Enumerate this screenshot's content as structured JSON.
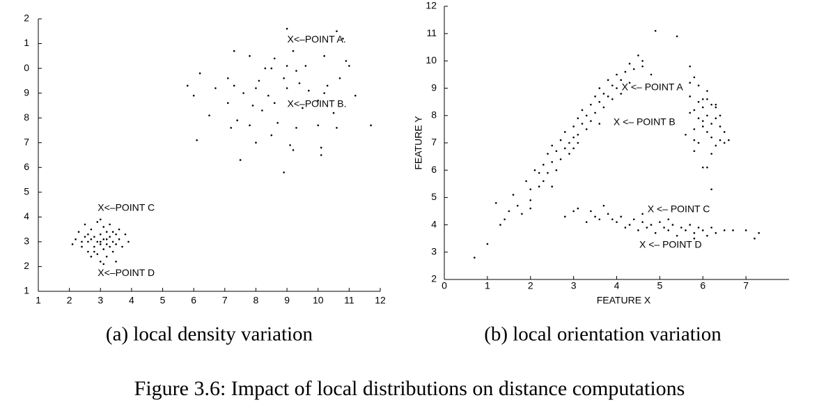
{
  "chart_data": [
    {
      "type": "scatter",
      "caption": "(a) local density variation",
      "color": "#000000",
      "xlim": [
        1,
        12
      ],
      "xticks": [
        1,
        2,
        3,
        4,
        5,
        6,
        7,
        8,
        9,
        10,
        11,
        12
      ],
      "ylim": [
        1,
        12
      ],
      "yticks": [
        1,
        2,
        3,
        4,
        5,
        6,
        7,
        8,
        9,
        {
          "value": 10,
          "label": "0"
        },
        {
          "value": 11,
          "label": "1"
        },
        {
          "value": 12,
          "label": "2"
        }
      ],
      "annotations": [
        {
          "text": "X<–POINT A.",
          "x": 9.1,
          "y": 11.15
        },
        {
          "text": "X<–POINT B.",
          "x": 9.1,
          "y": 8.55
        },
        {
          "text": "X<–POINT C",
          "x": 3.0,
          "y": 4.35
        },
        {
          "text": "X<–POINT D",
          "x": 3.0,
          "y": 1.73
        }
      ],
      "x": [
        9.0,
        10.6,
        10.8,
        9.2,
        7.3,
        7.8,
        8.6,
        10.2,
        10.9,
        11.0,
        6.2,
        7.1,
        8.3,
        8.5,
        9.0,
        9.3,
        9.6,
        8.1,
        8.9,
        9.4,
        10.3,
        10.7,
        5.8,
        6.0,
        6.7,
        7.3,
        7.6,
        8.0,
        8.4,
        9.0,
        9.7,
        10.2,
        11.2,
        7.1,
        7.9,
        8.2,
        8.6,
        9.5,
        10.0,
        10.5,
        6.5,
        7.4,
        7.8,
        8.7,
        9.3,
        10.0,
        10.6,
        11.7,
        6.1,
        8.0,
        8.5,
        9.2,
        10.1,
        7.5,
        8.9,
        10.1,
        9.1,
        7.2,
        2.2,
        2.3,
        2.4,
        2.5,
        2.5,
        2.6,
        2.6,
        2.7,
        2.7,
        2.8,
        2.8,
        2.9,
        2.9,
        2.9,
        3.0,
        3.0,
        3.0,
        3.1,
        3.1,
        3.1,
        3.2,
        3.2,
        3.2,
        3.3,
        3.3,
        3.3,
        3.4,
        3.4,
        3.5,
        3.5,
        3.6,
        3.6,
        3.7,
        3.8,
        3.9,
        2.4,
        2.7,
        3.0,
        2.8,
        3.2,
        3.4,
        2.6,
        3.1,
        2.1,
        3.5,
        3.0
      ],
      "values": [
        11.6,
        11.5,
        11.2,
        10.7,
        10.7,
        10.5,
        10.4,
        10.5,
        10.3,
        10.1,
        9.8,
        9.6,
        10.0,
        10.0,
        10.1,
        9.9,
        10.1,
        9.5,
        9.6,
        9.4,
        9.3,
        9.6,
        9.3,
        8.9,
        9.2,
        9.3,
        9.0,
        9.2,
        8.9,
        9.2,
        9.1,
        9.0,
        8.9,
        8.6,
        8.5,
        8.3,
        8.6,
        8.4,
        8.7,
        8.2,
        8.1,
        7.9,
        7.7,
        7.8,
        7.6,
        7.7,
        7.6,
        7.7,
        7.1,
        7.0,
        7.3,
        6.7,
        6.8,
        6.3,
        5.8,
        6.5,
        6.9,
        7.6,
        3.1,
        3.4,
        2.8,
        3.7,
        3.2,
        2.6,
        3.0,
        3.5,
        2.4,
        3.2,
        2.8,
        3.8,
        3.0,
        2.5,
        3.3,
        2.9,
        2.2,
        3.6,
        3.1,
        2.7,
        3.4,
        2.9,
        2.4,
        3.2,
        2.8,
        3.7,
        3.0,
        2.6,
        3.3,
        2.9,
        3.5,
        3.1,
        2.8,
        3.3,
        3.0,
        3.0,
        3.1,
        3.0,
        2.6,
        3.1,
        3.4,
        3.3,
        2.1,
        2.9,
        2.2,
        3.9
      ]
    },
    {
      "type": "scatter",
      "caption": "(b) local orientation variation",
      "color": "#000000",
      "x_label": "FEATURE X",
      "y_label": "FEATURE Y",
      "xlim": [
        0,
        8
      ],
      "xticks": [
        0,
        1,
        2,
        3,
        4,
        5,
        6,
        7
      ],
      "ylim": [
        2,
        12
      ],
      "yticks": [
        2,
        3,
        4,
        5,
        6,
        7,
        8,
        9,
        10,
        11,
        12
      ],
      "annotations": [
        {
          "text": "X <– POINT A",
          "x": 4.18,
          "y": 9.02
        },
        {
          "text": "X <– POINT B",
          "x": 3.99,
          "y": 7.74
        },
        {
          "text": "X <– POINT C",
          "x": 4.78,
          "y": 4.55
        },
        {
          "text": "X <– POINT D",
          "x": 4.59,
          "y": 3.25
        }
      ],
      "x": [
        0.7,
        1.0,
        1.2,
        1.3,
        1.5,
        1.6,
        1.7,
        1.8,
        1.9,
        2.0,
        2.0,
        2.1,
        2.2,
        2.2,
        2.3,
        2.3,
        2.4,
        2.4,
        2.5,
        2.5,
        2.6,
        2.6,
        2.7,
        2.7,
        2.8,
        2.8,
        2.9,
        2.9,
        3.0,
        3.0,
        3.0,
        3.1,
        3.1,
        3.2,
        3.2,
        3.3,
        3.3,
        3.4,
        3.4,
        3.5,
        3.5,
        3.6,
        3.6,
        3.7,
        3.7,
        3.8,
        3.8,
        3.9,
        3.9,
        4.0,
        4.0,
        4.1,
        4.1,
        4.2,
        4.3,
        4.3,
        4.4,
        4.5,
        4.6,
        4.8,
        1.4,
        2.0,
        2.5,
        3.1,
        3.6,
        5.7,
        5.8,
        5.9,
        6.0,
        6.1,
        6.2,
        6.3,
        6.4,
        6.5,
        5.7,
        5.8,
        5.9,
        6.0,
        6.1,
        6.2,
        6.3,
        6.4,
        5.6,
        5.8,
        6.0,
        6.2,
        6.4,
        6.6,
        5.7,
        5.9,
        6.1,
        6.3,
        6.5,
        5.8,
        6.0,
        6.2,
        5.9,
        6.1,
        5.7,
        6.0,
        6.3,
        5.8,
        6.1,
        5.4,
        6.2,
        4.9,
        4.6,
        2.8,
        3.0,
        3.1,
        3.3,
        3.4,
        3.5,
        3.6,
        3.8,
        3.9,
        4.0,
        4.1,
        4.2,
        4.3,
        4.4,
        4.5,
        4.6,
        4.7,
        4.8,
        4.9,
        5.0,
        5.1,
        5.2,
        5.3,
        5.4,
        5.5,
        5.6,
        5.7,
        5.8,
        5.9,
        6.0,
        6.1,
        6.2,
        6.3,
        6.5,
        6.7,
        7.0,
        7.2,
        7.3,
        4.6,
        5.2,
        5.8,
        3.7
      ],
      "values": [
        2.8,
        3.3,
        4.8,
        4.0,
        4.5,
        5.1,
        4.7,
        4.4,
        5.6,
        5.3,
        4.9,
        6.0,
        5.4,
        5.9,
        6.2,
        5.6,
        6.6,
        5.9,
        6.3,
        6.9,
        6.0,
        6.7,
        7.1,
        6.4,
        6.8,
        7.4,
        7.0,
        6.6,
        7.6,
        7.2,
        6.8,
        7.9,
        7.3,
        7.7,
        8.2,
        7.5,
        8.0,
        8.4,
        7.8,
        8.7,
        8.1,
        8.5,
        9.0,
        8.8,
        8.3,
        9.3,
        8.7,
        9.1,
        8.6,
        9.5,
        9.0,
        9.3,
        8.8,
        9.6,
        9.9,
        9.2,
        9.7,
        10.2,
        9.8,
        9.5,
        4.2,
        4.6,
        5.4,
        7.0,
        7.7,
        9.8,
        9.4,
        9.1,
        8.6,
        8.9,
        8.4,
        8.3,
        8.0,
        7.4,
        8.7,
        8.2,
        7.9,
        8.3,
        8.0,
        7.7,
        7.9,
        7.6,
        7.3,
        7.5,
        7.8,
        7.2,
        7.1,
        7.1,
        8.1,
        7.0,
        7.4,
        6.9,
        7.0,
        6.7,
        6.1,
        6.6,
        8.5,
        8.6,
        9.2,
        7.6,
        8.4,
        7.1,
        6.1,
        10.9,
        5.3,
        11.1,
        10.0,
        4.3,
        4.5,
        4.6,
        4.1,
        4.5,
        4.3,
        4.2,
        4.4,
        4.2,
        4.1,
        4.3,
        3.9,
        4.0,
        4.2,
        3.8,
        4.1,
        3.9,
        4.0,
        3.7,
        4.1,
        3.9,
        3.8,
        4.0,
        3.6,
        3.9,
        3.8,
        4.0,
        3.7,
        3.9,
        3.8,
        3.6,
        3.9,
        3.7,
        3.8,
        3.8,
        3.8,
        3.5,
        3.7,
        4.4,
        4.2,
        3.5,
        4.7
      ]
    }
  ],
  "caption": "Figure 3.6: Impact of local distributions on distance computations"
}
